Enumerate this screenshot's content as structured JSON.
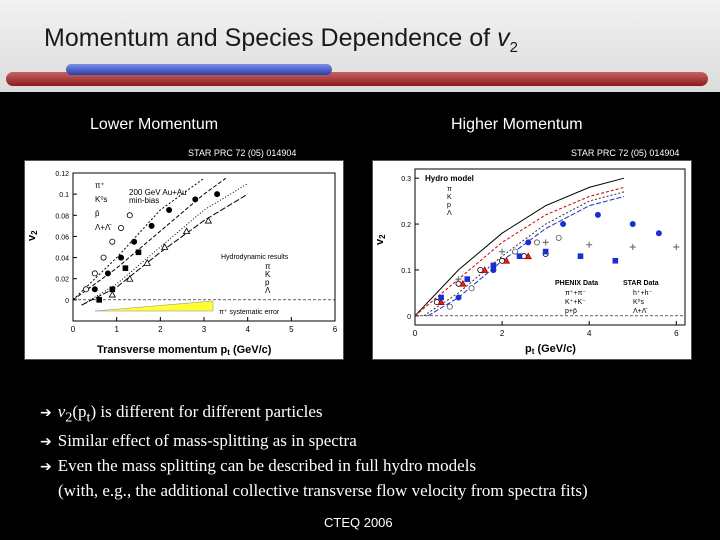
{
  "slide": {
    "title_main": "Momentum and Species Dependence of ",
    "title_var": "v",
    "title_sub": "2",
    "footer": "CTEQ 2006"
  },
  "left": {
    "heading": "Lower Momentum",
    "ref": "STAR PRC 72 (05) 014904",
    "annotation_1": "200 GeV Au+Au",
    "annotation_2": "min-bias",
    "hydro_label": "Hydrodynamic results",
    "sys_label": "π⁺ systematic error",
    "xlabel": "Transverse momentum p",
    "xlabel_sub": "t",
    "xlabel_unit": " (GeV/c)",
    "ylabel": "v",
    "ylabel_sub": "2",
    "legend": [
      "π⁺",
      "K⁰s",
      "p̄",
      "Λ+Λ̄"
    ],
    "hydro_legend": [
      "π",
      "K",
      "p",
      "Λ"
    ]
  },
  "right": {
    "heading": "Higher Momentum",
    "ref": "STAR PRC 72 (05) 014904",
    "hydro_title": "Hydro model",
    "hydro_legend": [
      "π",
      "K",
      "p",
      "Λ"
    ],
    "phenix_title": "PHENIX Data",
    "phenix_legend": [
      "π⁺+π⁻",
      "K⁺+K⁻",
      "p+p̄"
    ],
    "star_title": "STAR Data",
    "star_legend": [
      "h⁺+h⁻",
      "K⁰s",
      "Λ+Λ̄"
    ],
    "xlabel": "p",
    "xlabel_sub": "t",
    "xlabel_unit": " (GeV/c)",
    "ylabel": "v",
    "ylabel_sub": "2"
  },
  "bullets": [
    {
      "pre": "v",
      "sub": "2",
      "mid": "(p",
      "sub2": "t",
      "post": ")  is different for different particles"
    },
    {
      "text": "Similar effect of mass-splitting as in spectra"
    },
    {
      "text": "Even the mass splitting can be described in full hydro models"
    },
    {
      "text": "(with, e.g., the additional collective transverse flow velocity from spectra fits)"
    }
  ],
  "chart_data": [
    {
      "type": "scatter",
      "title": "",
      "xlabel": "Transverse momentum pt (GeV/c)",
      "ylabel": "v2",
      "xlim": [
        0,
        6
      ],
      "ylim": [
        -0.02,
        0.12
      ],
      "x_ticks": [
        "0",
        "1",
        "2",
        "3",
        "4",
        "5",
        "6"
      ],
      "y_ticks": [
        "0",
        "0.02",
        "0.04",
        "0.06",
        "0.08",
        "0.1",
        "0.12"
      ],
      "series": [
        {
          "name": "π⁺",
          "x": [
            0.3,
            0.5,
            0.7,
            0.9,
            1.1,
            1.3
          ],
          "y": [
            0.01,
            0.025,
            0.04,
            0.055,
            0.068,
            0.08
          ]
        },
        {
          "name": "K⁰s",
          "x": [
            0.5,
            0.8,
            1.1,
            1.4,
            1.8,
            2.2,
            2.8,
            3.3
          ],
          "y": [
            0.01,
            0.025,
            0.04,
            0.055,
            0.07,
            0.085,
            0.095,
            0.1
          ]
        },
        {
          "name": "p̄",
          "x": [
            0.6,
            0.9,
            1.2,
            1.5
          ],
          "y": [
            0.0,
            0.01,
            0.03,
            0.045
          ]
        },
        {
          "name": "Λ+Λ̄",
          "x": [
            0.9,
            1.3,
            1.7,
            2.1,
            2.6,
            3.1
          ],
          "y": [
            0.005,
            0.02,
            0.035,
            0.05,
            0.065,
            0.075
          ]
        }
      ]
    },
    {
      "type": "scatter",
      "title": "",
      "xlabel": "pt (GeV/c)",
      "ylabel": "v2",
      "xlim": [
        0,
        6.2
      ],
      "ylim": [
        -0.02,
        0.32
      ],
      "x_ticks": [
        "0",
        "2",
        "4",
        "6"
      ],
      "y_ticks": [
        "0",
        "0.1",
        "0.2",
        "0.3"
      ],
      "series": [
        {
          "name": "π⁺+π⁻",
          "x": [
            0.5,
            1.0,
            1.5,
            2.0,
            2.5,
            3.0
          ],
          "y": [
            0.03,
            0.07,
            0.1,
            0.12,
            0.13,
            0.135
          ]
        },
        {
          "name": "K⁺+K⁻",
          "x": [
            0.6,
            1.1,
            1.6,
            2.1,
            2.6
          ],
          "y": [
            0.03,
            0.07,
            0.1,
            0.12,
            0.13
          ]
        },
        {
          "name": "p+p̄",
          "x": [
            0.8,
            1.3,
            1.8,
            2.3,
            2.8,
            3.3
          ],
          "y": [
            0.02,
            0.06,
            0.1,
            0.14,
            0.16,
            0.17
          ]
        },
        {
          "name": "h⁺+h⁻",
          "x": [
            1.0,
            2.0,
            3.0,
            4.0,
            5.0,
            6.0
          ],
          "y": [
            0.08,
            0.14,
            0.16,
            0.155,
            0.15,
            0.15
          ]
        },
        {
          "name": "K⁰s",
          "x": [
            0.6,
            1.2,
            1.8,
            2.4,
            3.0,
            3.8,
            4.6
          ],
          "y": [
            0.04,
            0.08,
            0.11,
            0.13,
            0.14,
            0.13,
            0.12
          ]
        },
        {
          "name": "Λ+Λ̄",
          "x": [
            1.0,
            1.8,
            2.6,
            3.4,
            4.2,
            5.0,
            5.6
          ],
          "y": [
            0.04,
            0.1,
            0.16,
            0.2,
            0.22,
            0.2,
            0.18
          ]
        }
      ]
    }
  ]
}
